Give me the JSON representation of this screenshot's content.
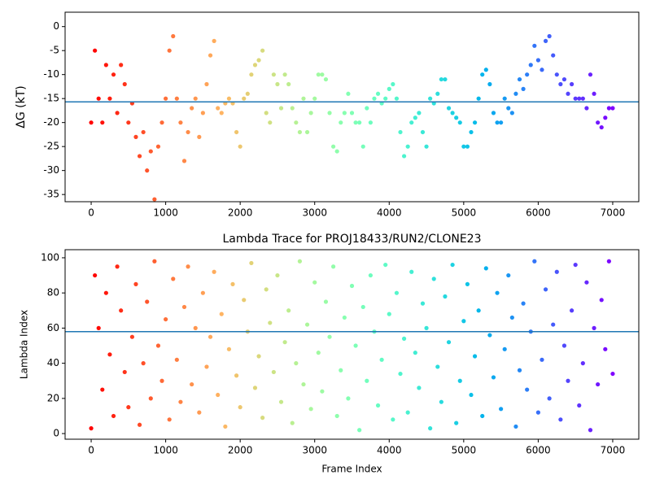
{
  "chart_data": [
    {
      "type": "scatter",
      "ylabel": "ΔG (kT)",
      "x": [
        0,
        50,
        100,
        150,
        200,
        250,
        300,
        350,
        400,
        450,
        500,
        550,
        600,
        650,
        700,
        750,
        800,
        850,
        900,
        950,
        1000,
        1050,
        1100,
        1150,
        1200,
        1250,
        1300,
        1350,
        1400,
        1450,
        1500,
        1550,
        1600,
        1650,
        1700,
        1750,
        1800,
        1850,
        1900,
        1950,
        2000,
        2050,
        2100,
        2150,
        2200,
        2250,
        2300,
        2350,
        2400,
        2450,
        2500,
        2550,
        2600,
        2650,
        2700,
        2750,
        2800,
        2850,
        2900,
        2950,
        3000,
        3050,
        3100,
        3150,
        3200,
        3250,
        3300,
        3350,
        3400,
        3450,
        3500,
        3550,
        3600,
        3650,
        3700,
        3750,
        3800,
        3850,
        3900,
        3950,
        4000,
        4050,
        4100,
        4150,
        4200,
        4250,
        4300,
        4350,
        4400,
        4450,
        4500,
        4550,
        4600,
        4650,
        4700,
        4750,
        4800,
        4850,
        4900,
        4950,
        5000,
        5050,
        5100,
        5150,
        5200,
        5250,
        5300,
        5350,
        5400,
        5450,
        5500,
        5550,
        5600,
        5650,
        5700,
        5750,
        5800,
        5850,
        5900,
        5950,
        6000,
        6050,
        6100,
        6150,
        6200,
        6250,
        6300,
        6350,
        6400,
        6450,
        6500,
        6550,
        6600,
        6650,
        6700,
        6750,
        6800,
        6850,
        6900,
        6950,
        7000
      ],
      "values": [
        -20,
        -5,
        -15,
        -20,
        -8,
        -15,
        -10,
        -18,
        -8,
        -12,
        -20,
        -16,
        -23,
        -27,
        -22,
        -30,
        -26,
        -36,
        -25,
        -20,
        -15,
        -5,
        -2,
        -15,
        -20,
        -28,
        -22,
        -17,
        -15,
        -23,
        -18,
        -12,
        -6,
        -3,
        -17,
        -18,
        -16,
        -15,
        -16,
        -22,
        -25,
        -15,
        -14,
        -10,
        -8,
        -7,
        -5,
        -18,
        -20,
        -10,
        -12,
        -17,
        -10,
        -12,
        -17,
        -20,
        -22,
        -15,
        -22,
        -18,
        -15,
        -10,
        -10,
        -11,
        -18,
        -25,
        -26,
        -20,
        -18,
        -14,
        -18,
        -20,
        -20,
        -25,
        -17,
        -20,
        -15,
        -14,
        -16,
        -15,
        -13,
        -12,
        -15,
        -22,
        -27,
        -25,
        -20,
        -19,
        -18,
        -22,
        -25,
        -15,
        -16,
        -14,
        -11,
        -11,
        -17,
        -18,
        -19,
        -20,
        -25,
        -25,
        -22,
        -20,
        -15,
        -10,
        -9,
        -12,
        -18,
        -20,
        -20,
        -15,
        -17,
        -18,
        -14,
        -11,
        -13,
        -10,
        -8,
        -4,
        -7,
        -9,
        -3,
        -2,
        -6,
        -10,
        -12,
        -11,
        -14,
        -12,
        -15,
        -15,
        -15,
        -17,
        -10,
        -14,
        -20,
        -21,
        -19,
        -17,
        -17
      ],
      "colormap": "rainbow_r",
      "hline": -15.7,
      "hline_color": "#1f77b4",
      "xlim": [
        -350,
        7350
      ],
      "ylim": [
        -36.5,
        3
      ],
      "xticks": [
        0,
        1000,
        2000,
        3000,
        4000,
        5000,
        6000,
        7000
      ],
      "yticks": [
        -35,
        -30,
        -25,
        -20,
        -15,
        -10,
        -5,
        0
      ]
    },
    {
      "type": "scatter",
      "title": "Lambda Trace for PROJ18433/RUN2/CLONE23",
      "xlabel": "Frame Index",
      "ylabel": "Lambda Index",
      "x": [
        0,
        50,
        100,
        150,
        200,
        250,
        300,
        350,
        400,
        450,
        500,
        550,
        600,
        650,
        700,
        750,
        800,
        850,
        900,
        950,
        1000,
        1050,
        1100,
        1150,
        1200,
        1250,
        1300,
        1350,
        1400,
        1450,
        1500,
        1550,
        1600,
        1650,
        1700,
        1750,
        1800,
        1850,
        1900,
        1950,
        2000,
        2050,
        2100,
        2150,
        2200,
        2250,
        2300,
        2350,
        2400,
        2450,
        2500,
        2550,
        2600,
        2650,
        2700,
        2750,
        2800,
        2850,
        2900,
        2950,
        3000,
        3050,
        3100,
        3150,
        3200,
        3250,
        3300,
        3350,
        3400,
        3450,
        3500,
        3550,
        3600,
        3650,
        3700,
        3750,
        3800,
        3850,
        3900,
        3950,
        4000,
        4050,
        4100,
        4150,
        4200,
        4250,
        4300,
        4350,
        4400,
        4450,
        4500,
        4550,
        4600,
        4650,
        4700,
        4750,
        4800,
        4850,
        4900,
        4950,
        5000,
        5050,
        5100,
        5150,
        5200,
        5250,
        5300,
        5350,
        5400,
        5450,
        5500,
        5550,
        5600,
        5650,
        5700,
        5750,
        5800,
        5850,
        5900,
        5950,
        6000,
        6050,
        6100,
        6150,
        6200,
        6250,
        6300,
        6350,
        6400,
        6450,
        6500,
        6550,
        6600,
        6650,
        6700,
        6750,
        6800,
        6850,
        6900,
        6950,
        7000
      ],
      "values": [
        3,
        90,
        60,
        25,
        80,
        45,
        10,
        95,
        70,
        35,
        15,
        55,
        85,
        5,
        40,
        75,
        20,
        98,
        50,
        30,
        65,
        8,
        88,
        42,
        18,
        72,
        95,
        28,
        60,
        12,
        80,
        38,
        55,
        92,
        22,
        68,
        4,
        48,
        85,
        33,
        15,
        76,
        58,
        97,
        26,
        44,
        9,
        82,
        63,
        35,
        90,
        18,
        52,
        70,
        6,
        40,
        98,
        28,
        62,
        14,
        86,
        46,
        24,
        75,
        55,
        95,
        10,
        36,
        66,
        20,
        84,
        50,
        2,
        72,
        30,
        90,
        58,
        16,
        42,
        96,
        68,
        8,
        80,
        34,
        54,
        12,
        92,
        46,
        26,
        74,
        60,
        3,
        88,
        38,
        18,
        78,
        52,
        96,
        6,
        30,
        64,
        85,
        22,
        44,
        70,
        10,
        94,
        56,
        32,
        80,
        14,
        48,
        90,
        66,
        4,
        36,
        74,
        25,
        58,
        98,
        12,
        42,
        82,
        20,
        62,
        92,
        8,
        50,
        30,
        70,
        96,
        16,
        40,
        86,
        2,
        60,
        28,
        76,
        48,
        98,
        34
      ],
      "colormap": "rainbow_r",
      "hline": 58,
      "hline_color": "#1f77b4",
      "xlim": [
        -350,
        7350
      ],
      "ylim": [
        -3.2,
        104.6
      ],
      "xticks": [
        0,
        1000,
        2000,
        3000,
        4000,
        5000,
        6000,
        7000
      ],
      "yticks": [
        0,
        20,
        40,
        60,
        80,
        100
      ]
    }
  ]
}
